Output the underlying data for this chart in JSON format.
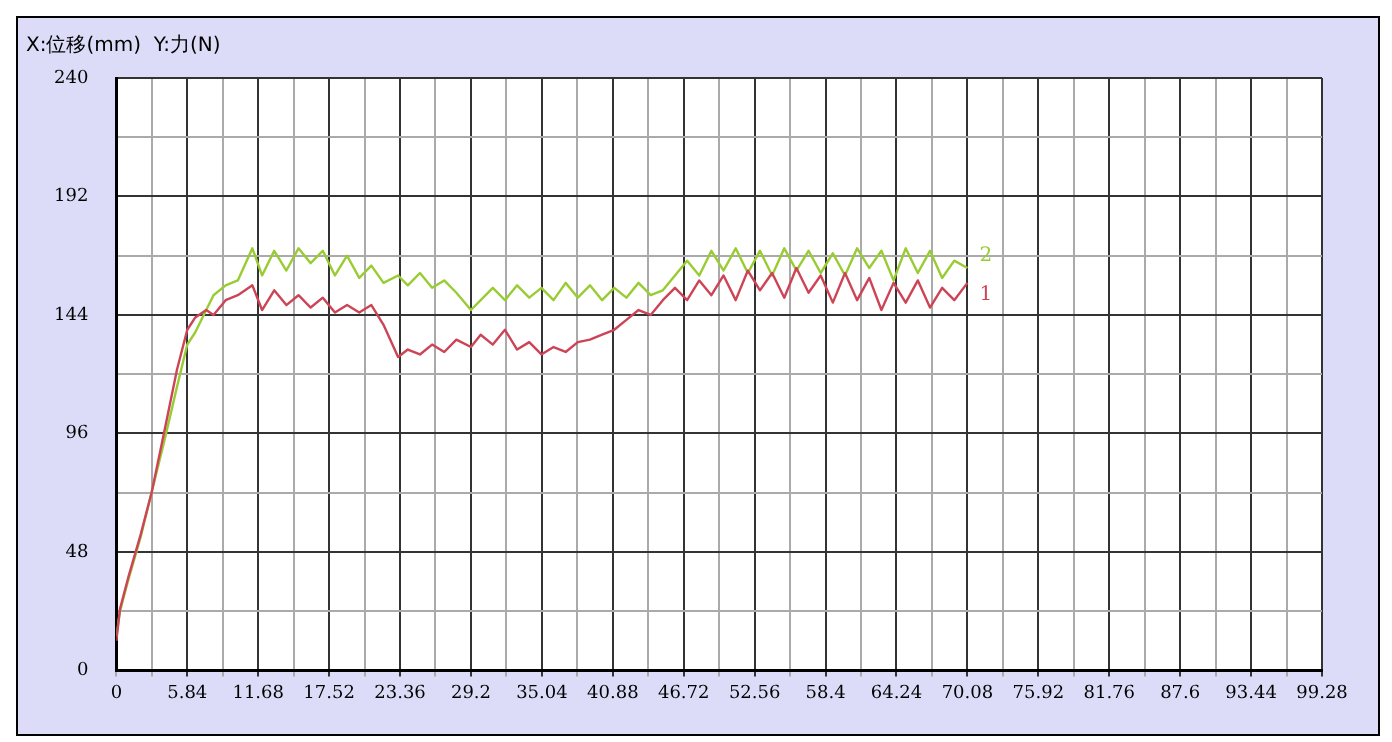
{
  "chart_data": {
    "type": "line",
    "title": "X:位移(mm)  Y:力(N)",
    "x": [
      0,
      0.3,
      1,
      2,
      2.9,
      4,
      5,
      5.84,
      6.5,
      7.4,
      8,
      9,
      10,
      11.2,
      12,
      13,
      14,
      15,
      16,
      17,
      18,
      19,
      20,
      21,
      22,
      23.2,
      24,
      25,
      26,
      27,
      28,
      29.2,
      30,
      31,
      32,
      33,
      34,
      35,
      36,
      37,
      38,
      39,
      40,
      41,
      42,
      43,
      44,
      45,
      46,
      47,
      48,
      49,
      50,
      51,
      52,
      53,
      54,
      55,
      56,
      57,
      58,
      59,
      60,
      61,
      62,
      63,
      64,
      65,
      66,
      67,
      68,
      69,
      70.08
    ],
    "series": [
      {
        "name": "1",
        "color": "#cc4455",
        "values": [
          12,
          25,
          38,
          55,
          72,
          98,
          122,
          138,
          143,
          146,
          144,
          150,
          152,
          156,
          146,
          154,
          148,
          152,
          147,
          151,
          145,
          148,
          145,
          148,
          140,
          127,
          130,
          128,
          132,
          129,
          134,
          131,
          136,
          132,
          138,
          130,
          133,
          128,
          131,
          129,
          133,
          134,
          136,
          138,
          142,
          146,
          144,
          150,
          155,
          150,
          158,
          152,
          160,
          150,
          162,
          154,
          161,
          151,
          163,
          153,
          160,
          149,
          161,
          150,
          159,
          146,
          157,
          149,
          158,
          147,
          155,
          150,
          157
        ]
      },
      {
        "name": "2",
        "color": "#99cc33",
        "values": [
          14,
          24,
          37,
          54,
          72,
          94,
          115,
          132,
          137,
          146,
          152,
          156,
          158,
          171,
          160,
          170,
          162,
          171,
          165,
          170,
          160,
          168,
          159,
          164,
          157,
          160,
          156,
          161,
          155,
          158,
          153,
          146,
          150,
          155,
          150,
          156,
          151,
          155,
          150,
          157,
          151,
          156,
          150,
          155,
          151,
          157,
          152,
          154,
          160,
          166,
          160,
          170,
          162,
          171,
          161,
          170,
          160,
          171,
          162,
          170,
          161,
          169,
          160,
          171,
          163,
          170,
          158,
          171,
          161,
          170,
          159,
          166,
          163
        ]
      }
    ],
    "xlim": [
      0,
      99.28
    ],
    "xticks": [
      0,
      {
        "value": 2.92,
        "label": null
      },
      5.84,
      {
        "value": 8.76,
        "label": null
      },
      11.68,
      {
        "value": 14.6,
        "label": null
      },
      17.52,
      {
        "value": 20.44,
        "label": null
      },
      23.36,
      {
        "value": 26.28,
        "label": null
      },
      29.2,
      {
        "value": 32.12,
        "label": null
      },
      35.04,
      {
        "value": 37.96,
        "label": null
      },
      40.88,
      {
        "value": 43.8,
        "label": null
      },
      46.72,
      {
        "value": 49.64,
        "label": null
      },
      52.56,
      {
        "value": 55.48,
        "label": null
      },
      58.4,
      {
        "value": 61.32,
        "label": null
      },
      64.24,
      {
        "value": 67.16,
        "label": null
      },
      70.08,
      {
        "value": 73,
        "label": null
      },
      75.92,
      {
        "value": 78.84,
        "label": null
      },
      81.76,
      {
        "value": 84.68,
        "label": null
      },
      87.6,
      {
        "value": 90.52,
        "label": null
      },
      93.44,
      {
        "value": 96.36,
        "label": null
      },
      99.28
    ],
    "ylim": [
      0,
      240
    ],
    "yticks": [
      0,
      {
        "value": 24,
        "label": null
      },
      48,
      {
        "value": 72,
        "label": null
      },
      96,
      {
        "value": 120,
        "label": null
      },
      144,
      {
        "value": 168,
        "label": null
      },
      192,
      {
        "value": 216,
        "label": null
      },
      240
    ],
    "grid": true,
    "marker": "none",
    "line_style": "solid",
    "legend": false
  }
}
